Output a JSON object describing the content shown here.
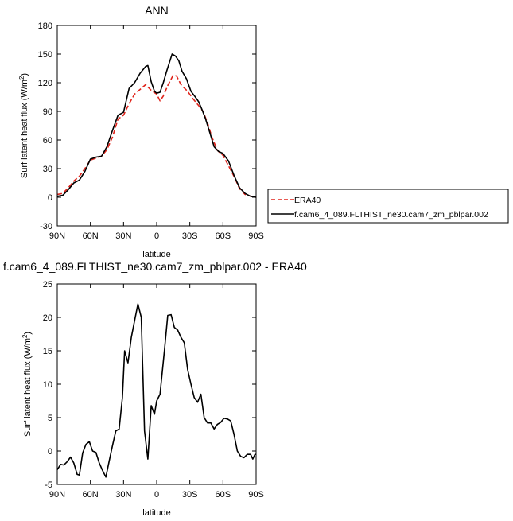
{
  "chart_data": [
    {
      "type": "line",
      "title": "ANN",
      "xlabel": "latitude",
      "ylabel": "Surf latent heat flux (W/m",
      "ylabel_sup": "2",
      "ylabel_close": ")",
      "xlim": [
        90,
        -90
      ],
      "ylim": [
        -30,
        180
      ],
      "yticks": [
        -30,
        0,
        30,
        60,
        90,
        120,
        150,
        180
      ],
      "xticks": [
        {
          "value": 90,
          "label": "90N"
        },
        {
          "value": 60,
          "label": "60N"
        },
        {
          "value": 30,
          "label": "30N"
        },
        {
          "value": 0,
          "label": "0"
        },
        {
          "value": -30,
          "label": "30S"
        },
        {
          "value": -60,
          "label": "60S"
        },
        {
          "value": -90,
          "label": "90S"
        }
      ],
      "legend": "outside-right",
      "series": [
        {
          "name": "ERA40",
          "color": "#e0241b",
          "dash": true,
          "points": [
            [
              90,
              3
            ],
            [
              85,
              4
            ],
            [
              80,
              10
            ],
            [
              75,
              17
            ],
            [
              70,
              22
            ],
            [
              65,
              30
            ],
            [
              60,
              39
            ],
            [
              55,
              41
            ],
            [
              50,
              43
            ],
            [
              45,
              50
            ],
            [
              40,
              63
            ],
            [
              35,
              82
            ],
            [
              30,
              86
            ],
            [
              25,
              98
            ],
            [
              20,
              108
            ],
            [
              15,
              113
            ],
            [
              10,
              118
            ],
            [
              5,
              112
            ],
            [
              0,
              108
            ],
            [
              -3,
              101
            ],
            [
              -6,
              106
            ],
            [
              -10,
              117
            ],
            [
              -15,
              128
            ],
            [
              -18,
              127
            ],
            [
              -22,
              118
            ],
            [
              -28,
              111
            ],
            [
              -33,
              103
            ],
            [
              -38,
              96
            ],
            [
              -42,
              90
            ],
            [
              -46,
              78
            ],
            [
              -50,
              63
            ],
            [
              -55,
              49
            ],
            [
              -60,
              44
            ],
            [
              -65,
              33
            ],
            [
              -70,
              22
            ],
            [
              -75,
              9
            ],
            [
              -80,
              3
            ],
            [
              -85,
              1
            ],
            [
              -90,
              0
            ]
          ]
        },
        {
          "name": "f.cam6_4_089.FLTHIST_ne30.cam7_zm_pblpar.002",
          "color": "#000000",
          "dash": false,
          "points": [
            [
              90,
              1
            ],
            [
              85,
              2
            ],
            [
              80,
              8
            ],
            [
              75,
              15
            ],
            [
              70,
              18
            ],
            [
              65,
              27
            ],
            [
              60,
              40
            ],
            [
              55,
              42
            ],
            [
              50,
              43
            ],
            [
              45,
              53
            ],
            [
              40,
              70
            ],
            [
              35,
              86
            ],
            [
              30,
              89
            ],
            [
              25,
              114
            ],
            [
              20,
              120
            ],
            [
              15,
              130
            ],
            [
              10,
              137
            ],
            [
              8,
              138
            ],
            [
              5,
              121
            ],
            [
              2,
              111
            ],
            [
              0,
              109
            ],
            [
              -3,
              110
            ],
            [
              -6,
              120
            ],
            [
              -9,
              132
            ],
            [
              -12,
              143
            ],
            [
              -14,
              150
            ],
            [
              -17,
              148
            ],
            [
              -20,
              143
            ],
            [
              -23,
              132
            ],
            [
              -27,
              124
            ],
            [
              -31,
              111
            ],
            [
              -35,
              105
            ],
            [
              -38,
              100
            ],
            [
              -41,
              92
            ],
            [
              -44,
              83
            ],
            [
              -48,
              68
            ],
            [
              -52,
              53
            ],
            [
              -56,
              48
            ],
            [
              -60,
              46
            ],
            [
              -65,
              38
            ],
            [
              -70,
              23
            ],
            [
              -75,
              10
            ],
            [
              -80,
              4
            ],
            [
              -85,
              1
            ],
            [
              -90,
              0
            ]
          ]
        }
      ]
    },
    {
      "type": "line",
      "title": "f.cam6_4_089.FLTHIST_ne30.cam7_zm_pblpar.002 - ERA40",
      "xlabel": "latitude",
      "ylabel": "Surf latent heat flux (W/m",
      "ylabel_sup": "2",
      "ylabel_close": ")",
      "xlim": [
        90,
        -90
      ],
      "ylim": [
        -5,
        25
      ],
      "yticks": [
        -5,
        0,
        5,
        10,
        15,
        20,
        25
      ],
      "xticks": [
        {
          "value": 90,
          "label": "90N"
        },
        {
          "value": 60,
          "label": "60N"
        },
        {
          "value": 30,
          "label": "30N"
        },
        {
          "value": 0,
          "label": "0"
        },
        {
          "value": -30,
          "label": "30S"
        },
        {
          "value": -60,
          "label": "60S"
        },
        {
          "value": -90,
          "label": "90S"
        }
      ],
      "series": [
        {
          "color": "#000000",
          "dash": false,
          "points": [
            [
              90,
              -2.8
            ],
            [
              87,
              -2.0
            ],
            [
              84,
              -2.1
            ],
            [
              81,
              -1.6
            ],
            [
              78,
              -0.9
            ],
            [
              75,
              -1.8
            ],
            [
              72,
              -3.5
            ],
            [
              70,
              -3.6
            ],
            [
              67,
              -0.3
            ],
            [
              64,
              1.0
            ],
            [
              61,
              1.4
            ],
            [
              58,
              0.0
            ],
            [
              55,
              -0.2
            ],
            [
              52,
              -1.8
            ],
            [
              49,
              -2.9
            ],
            [
              46,
              -3.9
            ],
            [
              43,
              -1.5
            ],
            [
              40,
              0.8
            ],
            [
              37,
              3.0
            ],
            [
              34,
              3.3
            ],
            [
              31,
              8.0
            ],
            [
              29,
              15.0
            ],
            [
              26,
              13.2
            ],
            [
              23,
              17.0
            ],
            [
              20,
              19.5
            ],
            [
              17,
              22.0
            ],
            [
              14,
              20.0
            ],
            [
              11,
              3.0
            ],
            [
              8,
              -1.2
            ],
            [
              5,
              6.8
            ],
            [
              2,
              5.5
            ],
            [
              0,
              7.5
            ],
            [
              -3,
              8.5
            ],
            [
              -7,
              15.0
            ],
            [
              -10,
              20.3
            ],
            [
              -13,
              20.4
            ],
            [
              -16,
              18.5
            ],
            [
              -19,
              18.1
            ],
            [
              -22,
              17.0
            ],
            [
              -25,
              16.2
            ],
            [
              -28,
              12.2
            ],
            [
              -31,
              10.0
            ],
            [
              -34,
              8.0
            ],
            [
              -37,
              7.3
            ],
            [
              -40,
              8.5
            ],
            [
              -43,
              5.0
            ],
            [
              -46,
              4.2
            ],
            [
              -49,
              4.2
            ],
            [
              -52,
              3.3
            ],
            [
              -55,
              4.0
            ],
            [
              -58,
              4.3
            ],
            [
              -61,
              4.9
            ],
            [
              -64,
              4.8
            ],
            [
              -67,
              4.5
            ],
            [
              -70,
              2.5
            ],
            [
              -73,
              0.0
            ],
            [
              -76,
              -0.8
            ],
            [
              -79,
              -1.0
            ],
            [
              -82,
              -0.5
            ],
            [
              -85,
              -0.5
            ],
            [
              -87,
              -1.2
            ],
            [
              -89,
              -0.5
            ],
            [
              -90,
              -0.5
            ]
          ]
        }
      ]
    }
  ]
}
